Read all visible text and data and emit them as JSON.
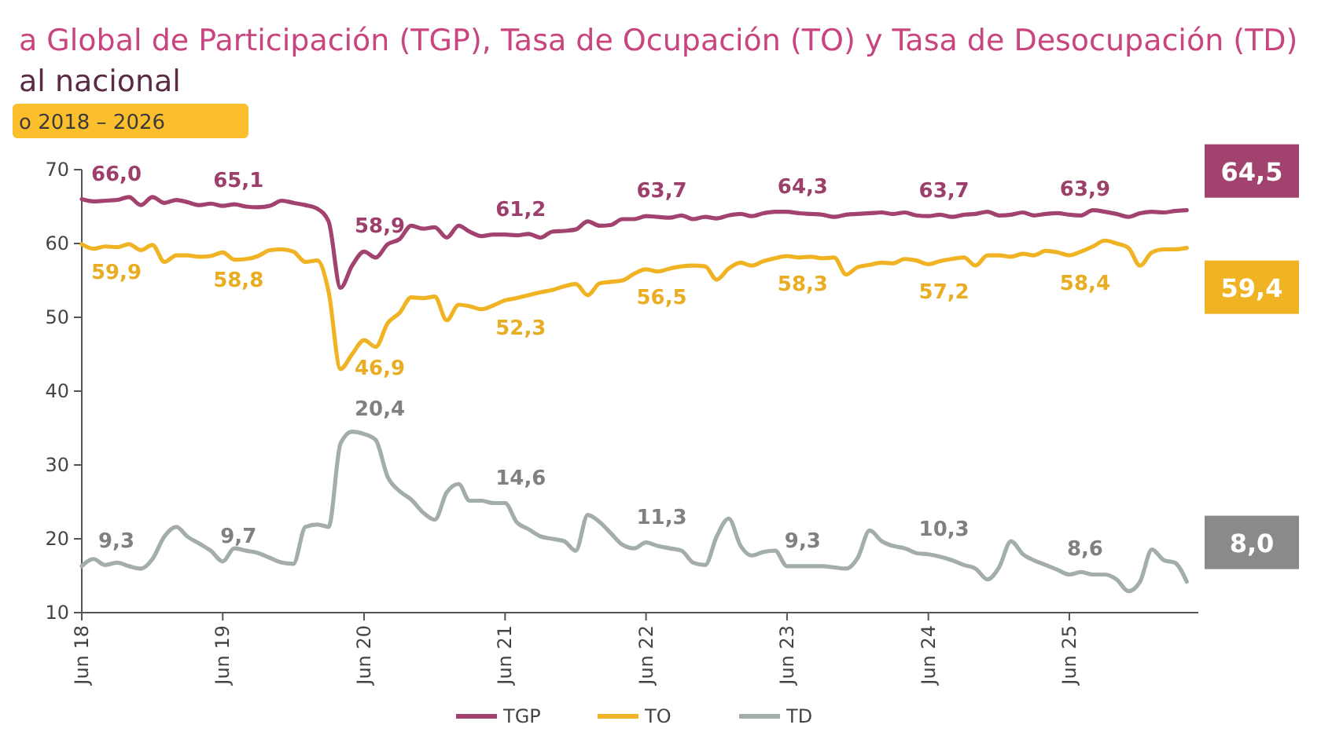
{
  "chart_data": {
    "type": "line",
    "title": "a Global de Participación (TGP), Tasa de Ocupación (TO) y Tasa de Desocupación (TD)",
    "subtitle": "al nacional",
    "annotations": [
      "o 2018 – 2026"
    ],
    "x": [
      "2018-06",
      "2018-07",
      "2018-08",
      "2018-09",
      "2018-10",
      "2018-11",
      "2018-12",
      "2019-01",
      "2019-02",
      "2019-03",
      "2019-04",
      "2019-05",
      "2019-06",
      "2019-07",
      "2019-08",
      "2019-09",
      "2019-10",
      "2019-11",
      "2019-12",
      "2020-01",
      "2020-02",
      "2020-03",
      "2020-04",
      "2020-05",
      "2020-06",
      "2020-07",
      "2020-08",
      "2020-09",
      "2020-10",
      "2020-11",
      "2020-12",
      "2021-01",
      "2021-02",
      "2021-03",
      "2021-04",
      "2021-05",
      "2021-06",
      "2021-07",
      "2021-08",
      "2021-09",
      "2021-10",
      "2021-11",
      "2021-12",
      "2022-01",
      "2022-02",
      "2022-03",
      "2022-04",
      "2022-05",
      "2022-06",
      "2022-07",
      "2022-08",
      "2022-09",
      "2022-10",
      "2022-11",
      "2022-12",
      "2023-01",
      "2023-02",
      "2023-03",
      "2023-04",
      "2023-05",
      "2023-06",
      "2023-07",
      "2023-08",
      "2023-09",
      "2023-10",
      "2023-11",
      "2023-12",
      "2024-01",
      "2024-02",
      "2024-03",
      "2024-04",
      "2024-05",
      "2024-06",
      "2024-07",
      "2024-08",
      "2024-09",
      "2024-10",
      "2024-11",
      "2024-12",
      "2025-01",
      "2025-02",
      "2025-03",
      "2025-04",
      "2025-05",
      "2025-06",
      "2025-07",
      "2025-08",
      "2025-09",
      "2025-10",
      "2025-11",
      "2025-12",
      "2026-01",
      "2026-02",
      "2026-03",
      "2026-04"
    ],
    "xlim": [
      "2018-06",
      "2026-05"
    ],
    "xticks": [
      {
        "value": "2018-06",
        "label": "Jun 18"
      },
      {
        "value": "2019-06",
        "label": "Jun 19"
      },
      {
        "value": "2020-06",
        "label": "Jun 20"
      },
      {
        "value": "2021-06",
        "label": "Jun 21"
      },
      {
        "value": "2022-06",
        "label": "Jun 22"
      },
      {
        "value": "2023-06",
        "label": "Jun 23"
      },
      {
        "value": "2024-06",
        "label": "Jun 24"
      },
      {
        "value": "2025-06",
        "label": "Jun 25"
      }
    ],
    "ylim": [
      10,
      70
    ],
    "yticks": [
      10,
      20,
      30,
      40,
      50,
      60,
      70
    ],
    "y2lim": [
      5.4,
      42.6
    ],
    "legend": "bottom",
    "marker": "none",
    "series": [
      {
        "name": "TGP",
        "color": "#a2426f",
        "values": [
          66.0,
          65.7,
          65.8,
          65.9,
          66.3,
          65.2,
          66.3,
          65.5,
          65.9,
          65.6,
          65.2,
          65.4,
          65.1,
          65.3,
          65.0,
          64.9,
          65.1,
          65.8,
          65.5,
          65.2,
          64.7,
          63.0,
          54.0,
          57.0,
          58.9,
          58.1,
          59.9,
          60.6,
          62.4,
          62.0,
          62.2,
          60.8,
          62.4,
          61.6,
          61.0,
          61.2,
          61.2,
          61.1,
          61.3,
          60.8,
          61.6,
          61.7,
          61.9,
          63.0,
          62.4,
          62.5,
          63.3,
          63.3,
          63.7,
          63.6,
          63.5,
          63.8,
          63.3,
          63.6,
          63.4,
          63.8,
          64.0,
          63.7,
          64.1,
          64.3,
          64.3,
          64.1,
          64.0,
          63.9,
          63.6,
          63.9,
          64.0,
          64.1,
          64.2,
          64.0,
          64.2,
          63.8,
          63.7,
          63.9,
          63.6,
          63.9,
          64.0,
          64.3,
          63.8,
          63.9,
          64.2,
          63.8,
          64.0,
          64.1,
          63.9,
          63.8,
          64.5,
          64.3,
          64.0,
          63.6,
          64.1,
          64.3,
          64.2,
          64.4,
          64.5
        ],
        "value_labels": [
          "66,0",
          null,
          null,
          null,
          null,
          null,
          null,
          null,
          null,
          null,
          null,
          null,
          "65,1",
          null,
          null,
          null,
          null,
          null,
          null,
          null,
          null,
          null,
          null,
          null,
          "58,9",
          null,
          null,
          null,
          null,
          null,
          null,
          null,
          null,
          null,
          null,
          null,
          "61,2",
          null,
          null,
          null,
          null,
          null,
          null,
          null,
          null,
          null,
          null,
          null,
          "63,7",
          null,
          null,
          null,
          null,
          null,
          null,
          null,
          null,
          null,
          null,
          null,
          "64,3",
          null,
          null,
          null,
          null,
          null,
          null,
          null,
          null,
          null,
          null,
          null,
          "63,7",
          null,
          null,
          null,
          null,
          null,
          null,
          null,
          null,
          null,
          null,
          null,
          "63,9",
          null,
          null,
          null,
          null,
          null,
          null,
          null,
          null,
          null,
          "64,5"
        ]
      },
      {
        "name": "TO",
        "color": "#f0b323",
        "values": [
          59.9,
          59.3,
          59.6,
          59.5,
          59.9,
          59.1,
          59.8,
          57.5,
          58.4,
          58.4,
          58.2,
          58.3,
          58.8,
          57.8,
          57.9,
          58.3,
          59.1,
          59.2,
          58.9,
          57.5,
          57.7,
          53.5,
          43.0,
          45.0,
          46.9,
          46.0,
          49.2,
          50.6,
          52.7,
          52.6,
          52.8,
          49.6,
          51.7,
          51.5,
          51.1,
          51.6,
          52.3,
          52.6,
          53.0,
          53.4,
          53.7,
          54.2,
          54.5,
          53.0,
          54.6,
          54.8,
          55.0,
          55.9,
          56.5,
          56.2,
          56.6,
          56.9,
          57.0,
          56.9,
          55.1,
          56.6,
          57.4,
          57.0,
          57.6,
          58.0,
          58.3,
          58.1,
          58.2,
          58.0,
          58.1,
          55.8,
          56.8,
          57.1,
          57.4,
          57.3,
          57.9,
          57.7,
          57.2,
          57.6,
          57.9,
          58.1,
          57.0,
          58.4,
          58.4,
          58.2,
          58.6,
          58.4,
          59.0,
          58.8,
          58.4,
          58.9,
          59.6,
          60.4,
          60.0,
          59.4,
          57.0,
          58.8,
          59.2,
          59.2,
          59.4
        ],
        "value_labels": [
          "59,9",
          null,
          null,
          null,
          null,
          null,
          null,
          null,
          null,
          null,
          null,
          null,
          "58,8",
          null,
          null,
          null,
          null,
          null,
          null,
          null,
          null,
          null,
          null,
          null,
          "46,9",
          null,
          null,
          null,
          null,
          null,
          null,
          null,
          null,
          null,
          null,
          null,
          "52,3",
          null,
          null,
          null,
          null,
          null,
          null,
          null,
          null,
          null,
          null,
          null,
          "56,5",
          null,
          null,
          null,
          null,
          null,
          null,
          null,
          null,
          null,
          null,
          null,
          "58,3",
          null,
          null,
          null,
          null,
          null,
          null,
          null,
          null,
          null,
          null,
          null,
          "57,2",
          null,
          null,
          null,
          null,
          null,
          null,
          null,
          null,
          null,
          null,
          null,
          "58,4",
          null,
          null,
          null,
          null,
          null,
          null,
          null,
          null,
          null,
          "59,4"
        ]
      },
      {
        "name": "TD",
        "color": "#a3aeab",
        "axis": "y2",
        "values": [
          9.3,
          9.9,
          9.4,
          9.6,
          9.3,
          9.1,
          9.9,
          11.8,
          12.6,
          11.8,
          11.2,
          10.6,
          9.7,
          10.8,
          10.6,
          10.4,
          10.0,
          9.6,
          9.5,
          12.6,
          12.8,
          12.6,
          19.6,
          20.6,
          20.4,
          19.9,
          16.8,
          15.6,
          14.9,
          13.8,
          13.2,
          15.5,
          16.2,
          14.8,
          14.8,
          14.6,
          14.6,
          13.0,
          12.4,
          11.8,
          11.6,
          11.4,
          10.6,
          13.6,
          13.0,
          12.1,
          11.1,
          10.8,
          11.3,
          11.0,
          10.8,
          10.6,
          9.6,
          9.4,
          11.8,
          13.3,
          11.0,
          10.2,
          10.5,
          10.6,
          9.3,
          9.3,
          9.3,
          9.3,
          9.2,
          9.1,
          10.0,
          12.3,
          11.4,
          11.0,
          10.8,
          10.4,
          10.3,
          10.1,
          9.8,
          9.4,
          9.1,
          8.2,
          9.2,
          11.4,
          10.3,
          9.8,
          9.4,
          9.0,
          8.6,
          8.8,
          8.6,
          8.6,
          8.2,
          7.2,
          8.0,
          10.7,
          9.8,
          9.6,
          8.0
        ],
        "value_labels": [
          "9,3",
          null,
          null,
          null,
          null,
          null,
          null,
          null,
          null,
          null,
          null,
          null,
          "9,7",
          null,
          null,
          null,
          null,
          null,
          null,
          null,
          null,
          null,
          null,
          null,
          "20,4",
          null,
          null,
          null,
          null,
          null,
          null,
          null,
          null,
          null,
          null,
          null,
          "14,6",
          null,
          null,
          null,
          null,
          null,
          null,
          null,
          null,
          null,
          null,
          null,
          "11,3",
          null,
          null,
          null,
          null,
          null,
          null,
          null,
          null,
          null,
          null,
          null,
          "9,3",
          null,
          null,
          null,
          null,
          null,
          null,
          null,
          null,
          null,
          null,
          null,
          "10,3",
          null,
          null,
          null,
          null,
          null,
          null,
          null,
          null,
          null,
          null,
          null,
          "8,6",
          null,
          null,
          null,
          null,
          null,
          null,
          null,
          null,
          null,
          "8,0"
        ]
      }
    ]
  }
}
